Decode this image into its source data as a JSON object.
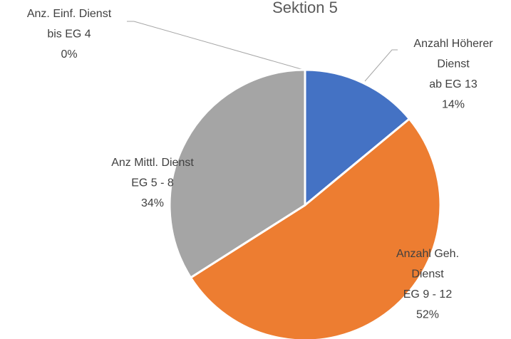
{
  "chart_data": {
    "type": "pie",
    "title": "Sektion 5",
    "categories": [
      [
        "Anzahl Höherer",
        "Dienst",
        "ab EG 13"
      ],
      [
        "Anzahl Geh.",
        "Dienst",
        "EG 9 - 12"
      ],
      [
        "Anz Mittl. Dienst",
        "EG 5 - 8"
      ],
      [
        "Anz. Einf. Dienst",
        "bis EG 4"
      ]
    ],
    "values": [
      14,
      52,
      34,
      0
    ],
    "value_labels": [
      "14%",
      "52%",
      "34%",
      "0%"
    ],
    "colors": [
      "#4472c4",
      "#ed7d31",
      "#a5a5a5",
      "#ffc000"
    ]
  }
}
